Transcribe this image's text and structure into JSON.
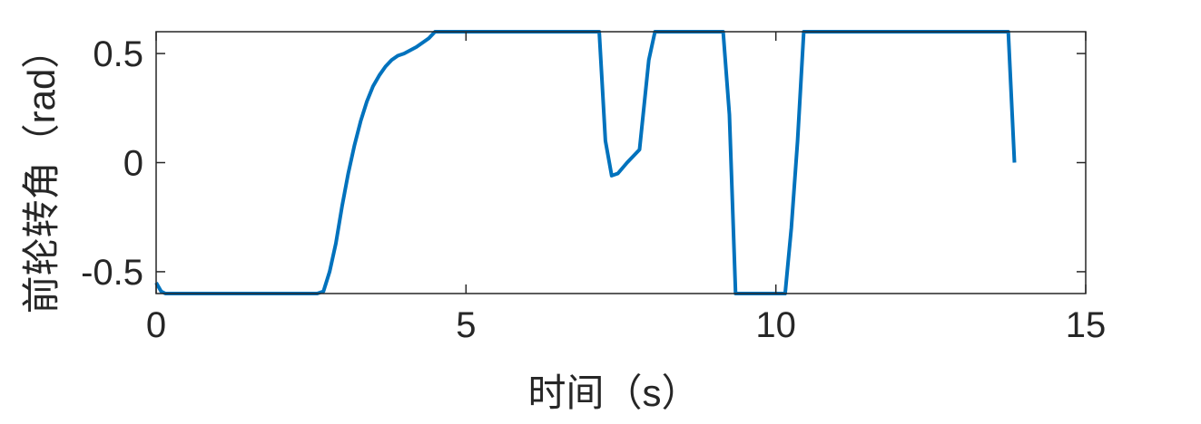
{
  "chart_data": {
    "type": "line",
    "title": "",
    "xlabel": "时间（s）",
    "ylabel": "前轮转角（rad）",
    "xlim": [
      0,
      15
    ],
    "ylim": [
      -0.6,
      0.6
    ],
    "xticks": [
      0,
      5,
      10,
      15
    ],
    "xtick_labels": [
      "0",
      "5",
      "10",
      "15"
    ],
    "yticks": [
      -0.5,
      0,
      0.5
    ],
    "ytick_labels": [
      "-0.5",
      "0",
      "0.5"
    ],
    "grid": false,
    "legend": "none",
    "series": [
      {
        "color": "#0072BD",
        "x": [
          0.0,
          0.08,
          0.15,
          1.0,
          2.0,
          2.6,
          2.7,
          2.8,
          2.9,
          3.0,
          3.1,
          3.2,
          3.3,
          3.4,
          3.5,
          3.6,
          3.7,
          3.8,
          3.9,
          4.0,
          4.2,
          4.4,
          4.5,
          5.0,
          6.0,
          7.0,
          7.15,
          7.25,
          7.35,
          7.45,
          7.6,
          7.8,
          7.95,
          8.05,
          8.5,
          9.0,
          9.15,
          9.25,
          9.35,
          9.45,
          10.0,
          10.15,
          10.25,
          10.35,
          10.45,
          11.0,
          12.0,
          13.0,
          13.75,
          13.85
        ],
        "y": [
          -0.55,
          -0.59,
          -0.6,
          -0.6,
          -0.6,
          -0.6,
          -0.59,
          -0.5,
          -0.37,
          -0.2,
          -0.05,
          0.08,
          0.19,
          0.28,
          0.35,
          0.4,
          0.44,
          0.47,
          0.49,
          0.5,
          0.53,
          0.57,
          0.6,
          0.6,
          0.6,
          0.6,
          0.6,
          0.1,
          -0.06,
          -0.05,
          0.0,
          0.06,
          0.47,
          0.6,
          0.6,
          0.6,
          0.6,
          0.22,
          -0.6,
          -0.6,
          -0.6,
          -0.6,
          -0.3,
          0.1,
          0.6,
          0.6,
          0.6,
          0.6,
          0.6,
          0.0
        ]
      }
    ]
  }
}
